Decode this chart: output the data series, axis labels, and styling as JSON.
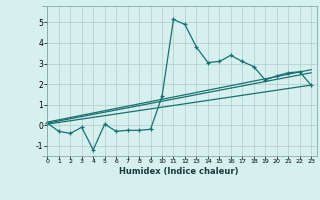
{
  "xlabel": "Humidex (Indice chaleur)",
  "bg_color": "#d6f0f0",
  "grid_color": "#b8d0d0",
  "line_color": "#1a7070",
  "xlim": [
    -0.5,
    23.5
  ],
  "ylim": [
    -1.5,
    5.8
  ],
  "yticks": [
    -1,
    0,
    1,
    2,
    3,
    4,
    5
  ],
  "xticks": [
    0,
    1,
    2,
    3,
    4,
    5,
    6,
    7,
    8,
    9,
    10,
    11,
    12,
    13,
    14,
    15,
    16,
    17,
    18,
    19,
    20,
    21,
    22,
    23
  ],
  "series1_x": [
    0,
    1,
    2,
    3,
    4,
    5,
    6,
    7,
    8,
    9,
    10,
    11,
    12,
    13,
    14,
    15,
    16,
    17,
    18,
    19,
    20,
    21,
    22,
    23
  ],
  "series1_y": [
    0.1,
    -0.3,
    -0.4,
    -0.1,
    -1.2,
    0.05,
    -0.3,
    -0.25,
    -0.25,
    -0.2,
    1.4,
    5.15,
    4.9,
    3.8,
    3.05,
    3.1,
    3.4,
    3.1,
    2.85,
    2.2,
    2.4,
    2.55,
    2.6,
    1.95
  ],
  "series2_x": [
    0,
    23
  ],
  "series2_y": [
    0.1,
    2.55
  ],
  "series3_x": [
    0,
    23
  ],
  "series3_y": [
    0.05,
    1.95
  ],
  "series4_x": [
    0,
    23
  ],
  "series4_y": [
    0.15,
    2.7
  ]
}
